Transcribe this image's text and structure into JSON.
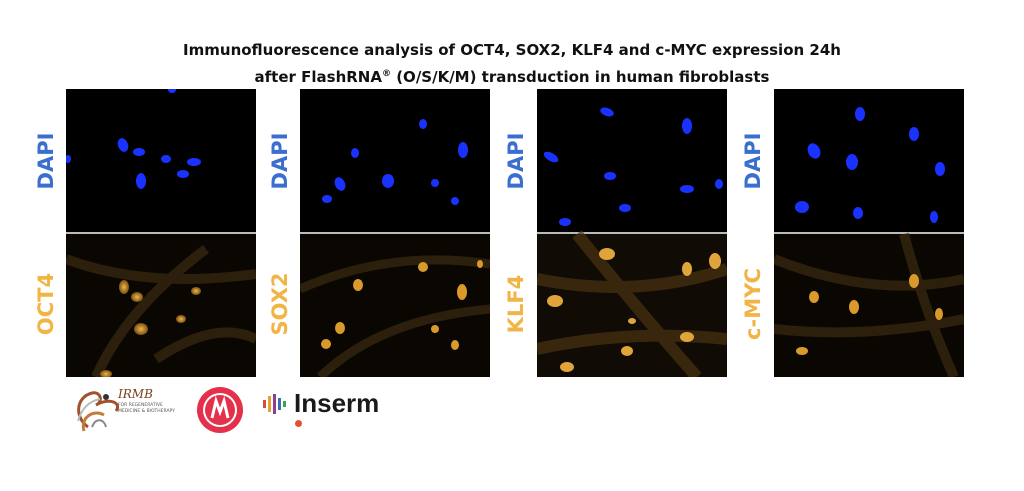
{
  "title": {
    "line1": "Immunofluorescence  analysis of OCT4, SOX2, KLF4 and c-MYC expression 24h",
    "line2_pre": "after FlashRNA",
    "line2_sup": "®",
    "line2_post": " (O/S/K/M) transduction in human fibroblasts"
  },
  "panels": [
    {
      "top_label": "DAPI",
      "bottom_label": "OCT4"
    },
    {
      "top_label": "DAPI",
      "bottom_label": "SOX2"
    },
    {
      "top_label": "DAPI",
      "bottom_label": "KLF4"
    },
    {
      "top_label": "DAPI",
      "bottom_label": "c-MYC"
    }
  ],
  "colors": {
    "dapi": "#3a6fd0",
    "marker": "#f0b545",
    "nucleus_blue": "#1530ff",
    "nucleus_gold": "#d99a2b"
  },
  "logos": {
    "irmb_name": "IRMB",
    "irmb_sub": "FOR REGENERATIVE MEDICINE & BIOTHERAPY",
    "inserm_name": "Inserm"
  }
}
